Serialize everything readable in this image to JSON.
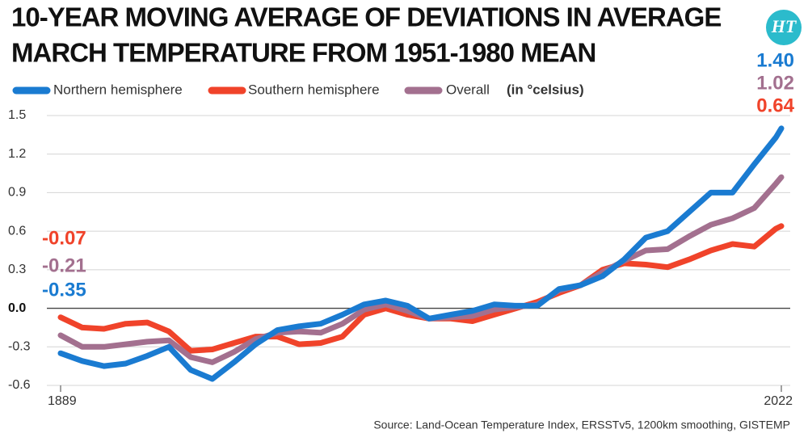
{
  "chart_data": {
    "type": "line",
    "title": [
      "10-YEAR MOVING AVERAGE OF DEVIATIONS IN AVERAGE",
      "MARCH TEMPERATURE FROM 1951-1980 MEAN"
    ],
    "logo": "HT",
    "unit": "(in °celsius)",
    "source": "Source: Land-Ocean Temperature Index, ERSSTv5, 1200km smoothing, GISTEMP",
    "x": [
      1889,
      1893,
      1897,
      1901,
      1905,
      1909,
      1913,
      1917,
      1921,
      1925,
      1929,
      1933,
      1937,
      1941,
      1945,
      1949,
      1953,
      1957,
      1961,
      1965,
      1969,
      1973,
      1977,
      1981,
      1985,
      1989,
      1993,
      1997,
      2001,
      2005,
      2009,
      2013,
      2017,
      2021,
      2022
    ],
    "xlim": [
      1889,
      2022
    ],
    "xticks": [
      1889,
      2022
    ],
    "ylim": [
      -0.6,
      1.5
    ],
    "yticks": [
      1.5,
      1.2,
      0.9,
      0.6,
      0.3,
      {
        "value": 0,
        "label": "0.0"
      },
      -0.3,
      -0.6
    ],
    "grid": true,
    "series": [
      {
        "name": "Northern hemisphere",
        "color": "#1a7bd1",
        "values": [
          -0.35,
          -0.41,
          -0.45,
          -0.43,
          -0.37,
          -0.3,
          -0.48,
          -0.55,
          -0.42,
          -0.28,
          -0.17,
          -0.14,
          -0.12,
          -0.05,
          0.03,
          0.06,
          0.02,
          -0.08,
          -0.05,
          -0.02,
          0.03,
          0.02,
          0.02,
          0.15,
          0.18,
          0.25,
          0.38,
          0.55,
          0.6,
          0.75,
          0.9,
          0.9,
          1.12,
          1.33,
          1.4
        ],
        "value_labels": [
          "-0.35",
          null,
          null,
          null,
          null,
          null,
          null,
          null,
          null,
          null,
          null,
          null,
          null,
          null,
          null,
          null,
          null,
          null,
          null,
          null,
          null,
          null,
          null,
          null,
          null,
          null,
          null,
          null,
          null,
          null,
          null,
          null,
          null,
          null,
          "1.40"
        ]
      },
      {
        "name": "Southern hemisphere",
        "color": "#f0432a",
        "values": [
          -0.07,
          -0.15,
          -0.16,
          -0.12,
          -0.11,
          -0.18,
          -0.33,
          -0.32,
          -0.27,
          -0.22,
          -0.22,
          -0.28,
          -0.27,
          -0.22,
          -0.05,
          0.0,
          -0.05,
          -0.08,
          -0.08,
          -0.1,
          -0.05,
          0.0,
          0.05,
          0.12,
          0.18,
          0.3,
          0.35,
          0.34,
          0.32,
          0.38,
          0.45,
          0.5,
          0.48,
          0.62,
          0.64
        ],
        "value_labels": [
          "-0.07",
          null,
          null,
          null,
          null,
          null,
          null,
          null,
          null,
          null,
          null,
          null,
          null,
          null,
          null,
          null,
          null,
          null,
          null,
          null,
          null,
          null,
          null,
          null,
          null,
          null,
          null,
          null,
          null,
          null,
          null,
          null,
          null,
          null,
          "0.64"
        ]
      },
      {
        "name": "Overall",
        "color": "#a3708f",
        "values": [
          -0.21,
          -0.3,
          -0.3,
          -0.28,
          -0.26,
          -0.25,
          -0.38,
          -0.42,
          -0.34,
          -0.24,
          -0.19,
          -0.18,
          -0.19,
          -0.12,
          -0.01,
          0.03,
          -0.02,
          -0.08,
          -0.07,
          -0.06,
          -0.01,
          0.01,
          0.03,
          0.14,
          0.18,
          0.28,
          0.37,
          0.45,
          0.46,
          0.56,
          0.65,
          0.7,
          0.78,
          0.97,
          1.02
        ],
        "value_labels": [
          "-0.21",
          null,
          null,
          null,
          null,
          null,
          null,
          null,
          null,
          null,
          null,
          null,
          null,
          null,
          null,
          null,
          null,
          null,
          null,
          null,
          null,
          null,
          null,
          null,
          null,
          null,
          null,
          null,
          null,
          null,
          null,
          null,
          null,
          null,
          "1.02"
        ]
      }
    ]
  }
}
